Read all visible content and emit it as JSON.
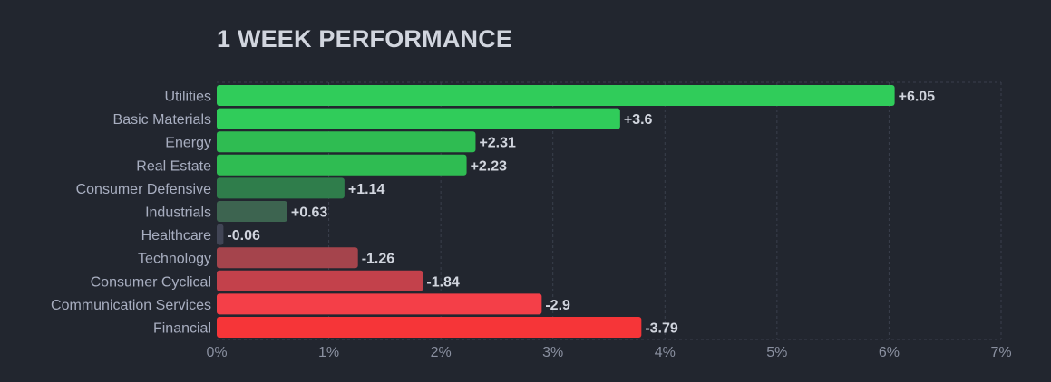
{
  "chart_data": {
    "type": "bar",
    "orientation": "horizontal",
    "title": "1 WEEK PERFORMANCE",
    "categories": [
      "Utilities",
      "Basic Materials",
      "Energy",
      "Real Estate",
      "Consumer Defensive",
      "Industrials",
      "Healthcare",
      "Technology",
      "Consumer Cyclical",
      "Communication Services",
      "Financial"
    ],
    "values": [
      6.05,
      3.6,
      2.31,
      2.23,
      1.14,
      0.63,
      -0.06,
      -1.26,
      -1.84,
      -2.9,
      -3.79
    ],
    "value_labels": [
      "+6.05",
      "+3.6",
      "+2.31",
      "+2.23",
      "+1.14",
      "+0.63",
      "-0.06",
      "-1.26",
      "-1.84",
      "-2.9",
      "-3.79"
    ],
    "bar_colors": [
      "#30cc5a",
      "#30cc5a",
      "#2fbc52",
      "#2fbc52",
      "#2f7d4b",
      "#3d6450",
      "#414555",
      "#a5444c",
      "#c3414b",
      "#f43f48",
      "#f63538"
    ],
    "bar_length": "absolute value",
    "xlim": [
      0,
      7
    ],
    "x_ticks": [
      "0%",
      "1%",
      "2%",
      "3%",
      "4%",
      "5%",
      "6%",
      "7%"
    ],
    "xlabel": "",
    "ylabel": "",
    "grid": true,
    "legend": "none"
  },
  "colors": {
    "background": "#22262f",
    "title": "#d1d5de",
    "category_label": "#a8aec0",
    "value_label": "#d1d5de",
    "tick_label": "#8a90a0",
    "grid": "#3a3f4c"
  }
}
